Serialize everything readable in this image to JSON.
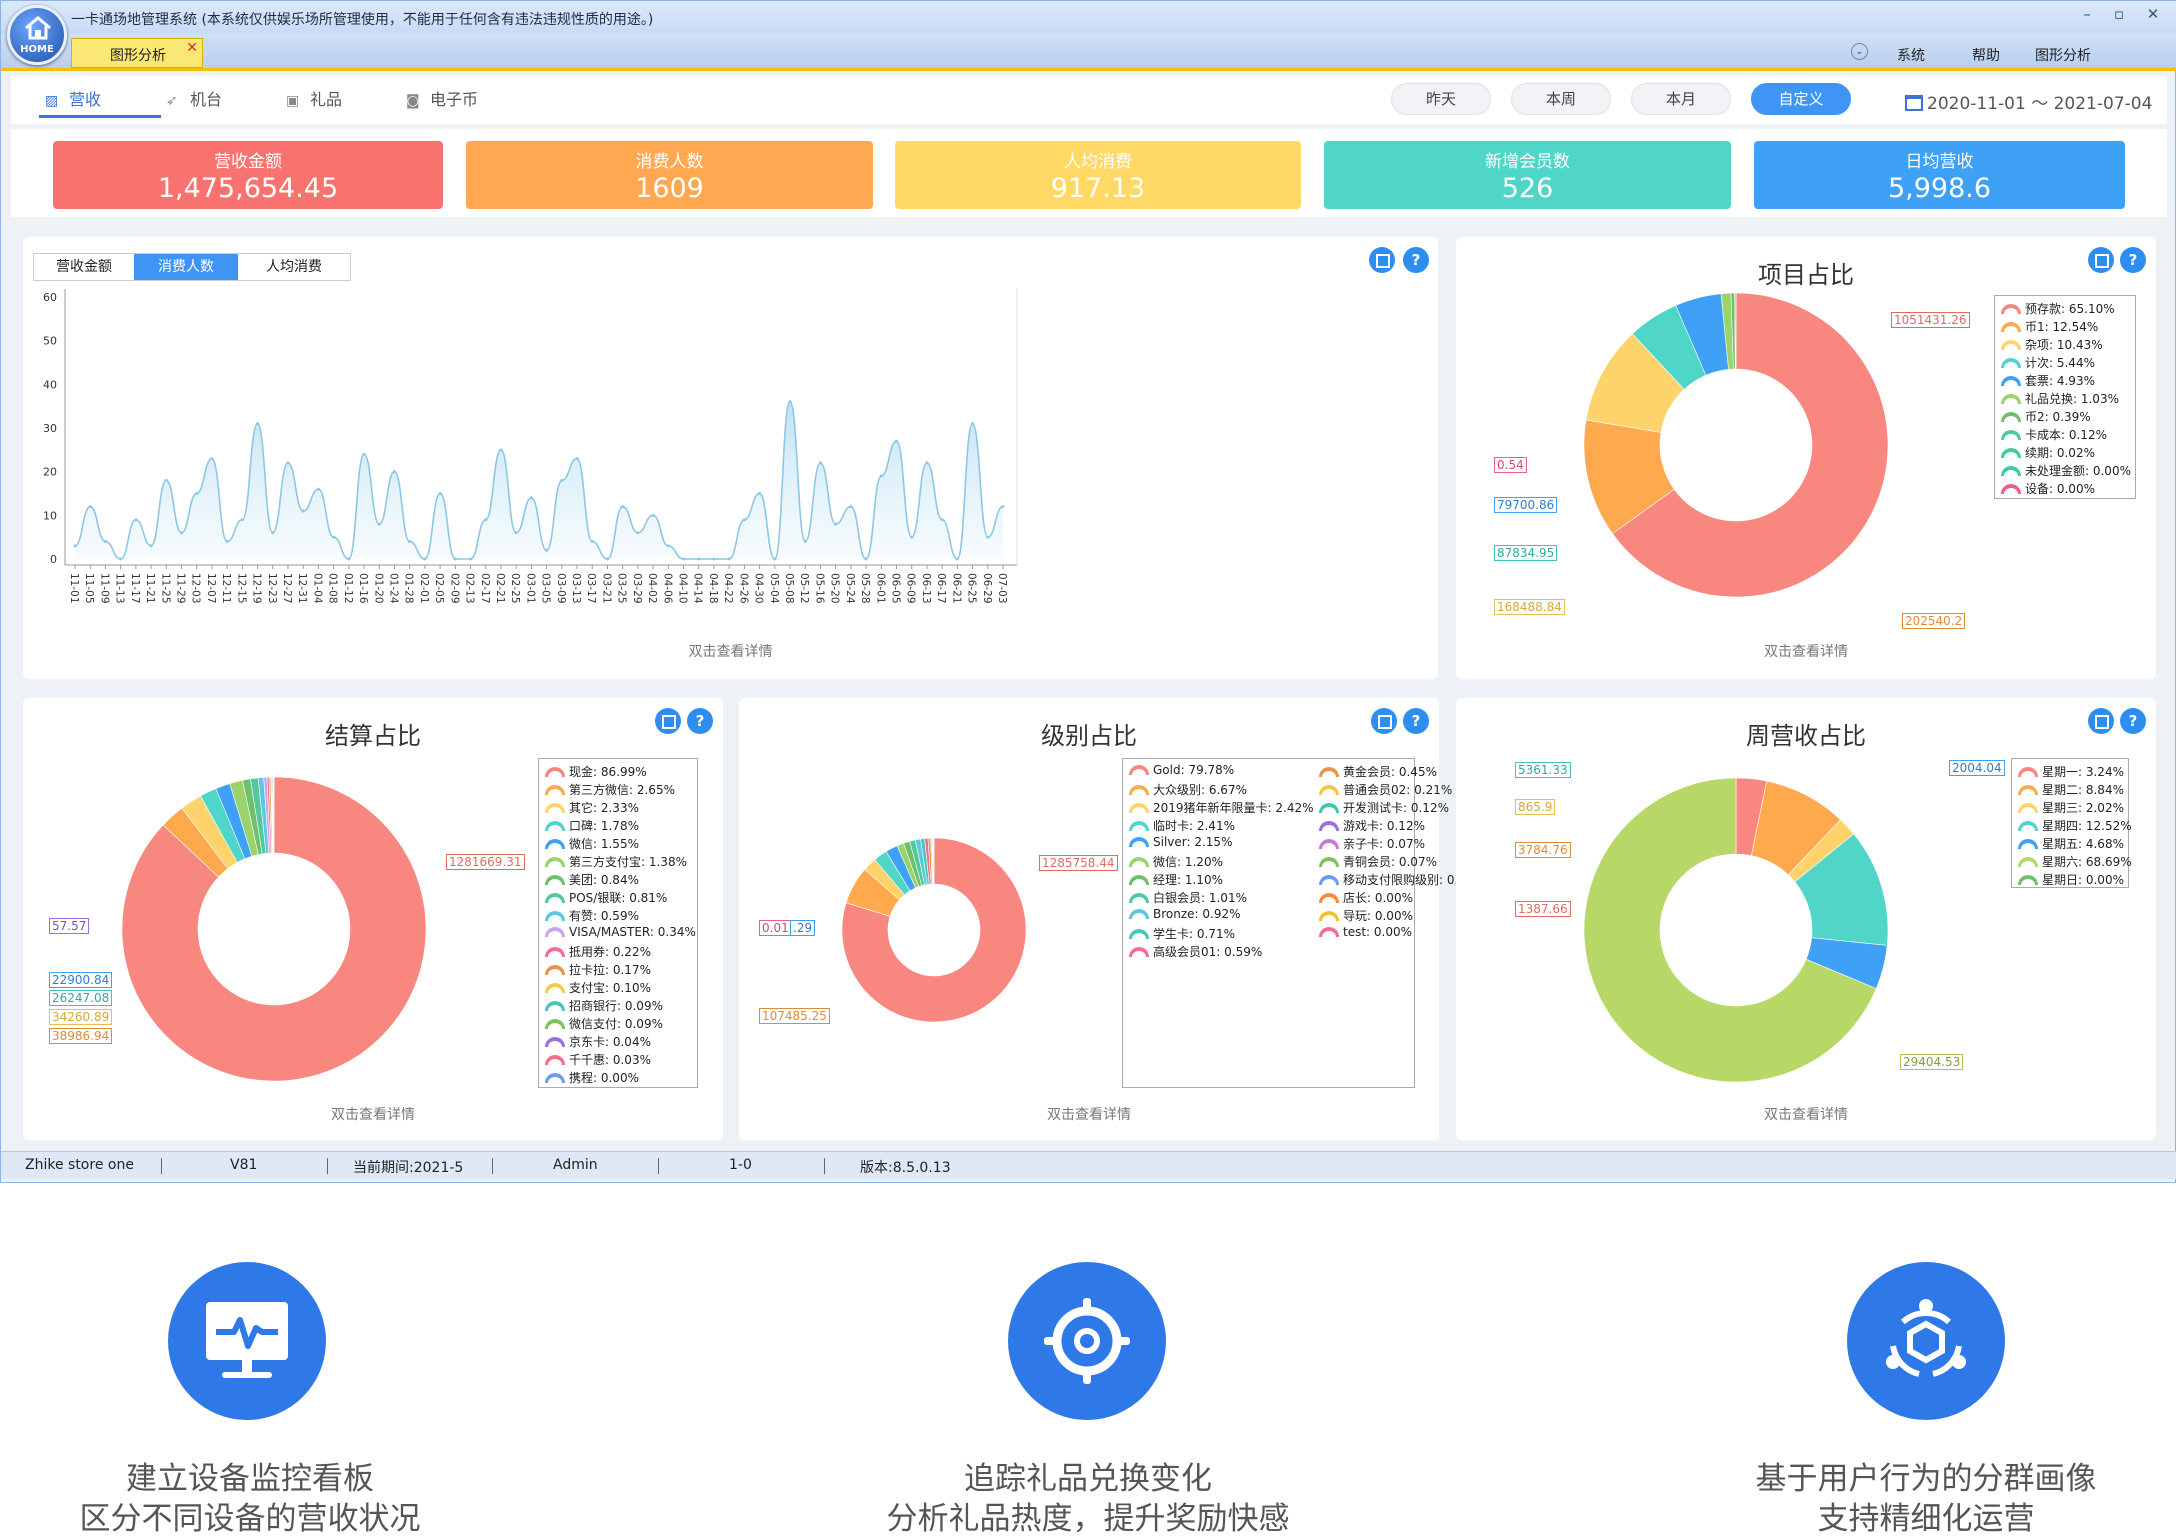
{
  "window": {
    "title": "一卡通场地管理系统 (本系统仅供娱乐场所管理使用，不能用于任何含有违法违规性质的用途。)",
    "logo_text": "HOME",
    "doc_tab": "图形分析",
    "controls": {
      "minimize": "–",
      "maximize": "▫",
      "close": "✕"
    },
    "menu": [
      "系统",
      "帮助",
      "图形分析"
    ]
  },
  "subnav": {
    "tabs": [
      {
        "label": "营收",
        "icon": "chart-icon"
      },
      {
        "label": "机台",
        "icon": "rocket-icon"
      },
      {
        "label": "礼品",
        "icon": "gift-icon"
      },
      {
        "label": "电子币",
        "icon": "coin-icon"
      }
    ],
    "ranges": [
      "昨天",
      "本周",
      "本月",
      "自定义"
    ],
    "date_from": "2020-11-01",
    "date_sep": "～",
    "date_to": "2021-07-04"
  },
  "kpis": [
    {
      "label": "营收金额",
      "value": "1,475,654.45",
      "color": "#f8736f"
    },
    {
      "label": "消费人数",
      "value": "1609",
      "color": "#ffa851"
    },
    {
      "label": "人均消费",
      "value": "917.13",
      "color": "#ffd865"
    },
    {
      "label": "新增会员数",
      "value": "526",
      "color": "#4fd6c9"
    },
    {
      "label": "日均营收",
      "value": "5,998.6",
      "color": "#3ea1f6"
    }
  ],
  "line_panel": {
    "tabs": [
      "营收金额",
      "消费人数",
      "人均消费"
    ],
    "active_tab": 1,
    "hint": "双击查看详情"
  },
  "pie_panels": {
    "items": {
      "title": "项目占比",
      "hint": "双击查看详情"
    },
    "settle": {
      "title": "结算占比",
      "hint": "双击查看详情"
    },
    "level": {
      "title": "级别占比",
      "hint": "双击查看详情"
    },
    "week": {
      "title": "周营收占比",
      "hint": "双击查看详情"
    }
  },
  "chart_data": [
    {
      "type": "area",
      "series": [
        {
          "name": "消费人数",
          "color": "#8cc7e6"
        }
      ],
      "ylim": [
        0,
        60
      ],
      "yticks": [
        "0",
        "10",
        "20",
        "30",
        "40",
        "50",
        "60"
      ],
      "x": [
        "11-01",
        "11-05",
        "11-09",
        "11-13",
        "11-17",
        "11-21",
        "11-25",
        "11-29",
        "12-03",
        "12-07",
        "12-11",
        "12-15",
        "12-19",
        "12-23",
        "12-27",
        "12-31",
        "01-04",
        "01-08",
        "01-12",
        "01-16",
        "01-20",
        "01-24",
        "01-28",
        "02-01",
        "02-05",
        "02-09",
        "02-13",
        "02-17",
        "02-21",
        "02-25",
        "03-01",
        "03-05",
        "03-09",
        "03-13",
        "03-17",
        "03-21",
        "03-25",
        "03-29",
        "04-02",
        "04-06",
        "04-10",
        "04-14",
        "04-18",
        "04-22",
        "04-26",
        "04-30",
        "05-04",
        "05-08",
        "05-12",
        "05-16",
        "05-20",
        "05-24",
        "05-28",
        "06-01",
        "06-05",
        "06-09",
        "06-13",
        "06-17",
        "06-21",
        "06-25",
        "06-29",
        "07-03"
      ],
      "values": [
        3,
        12,
        4,
        0,
        9,
        3,
        18,
        6,
        15,
        23,
        4,
        9,
        31,
        6,
        22,
        11,
        16,
        5,
        0,
        24,
        8,
        20,
        4,
        0,
        15,
        0,
        0,
        9,
        25,
        6,
        14,
        2,
        18,
        23,
        4,
        0,
        12,
        6,
        10,
        3,
        0,
        0,
        0,
        0,
        9,
        15,
        0,
        36,
        4,
        22,
        8,
        12,
        0,
        19,
        27,
        5,
        22,
        9,
        0,
        31,
        5,
        12
      ]
    },
    {
      "type": "pie",
      "title": "项目占比",
      "slices": [
        {
          "label": "预存款",
          "pct": 65.1,
          "color": "#f8877f"
        },
        {
          "label": "币1",
          "pct": 12.54,
          "color": "#ffa94e"
        },
        {
          "label": "杂项",
          "pct": 10.43,
          "color": "#ffd36b"
        },
        {
          "label": "计次",
          "pct": 5.44,
          "color": "#4fd6c9"
        },
        {
          "label": "套票",
          "pct": 4.93,
          "color": "#3ea1f6"
        },
        {
          "label": "礼品兑换",
          "pct": 1.03,
          "color": "#9bd36b"
        },
        {
          "label": "币2",
          "pct": 0.39,
          "color": "#6fc06c"
        },
        {
          "label": "卡成本",
          "pct": 0.12,
          "color": "#53c99a"
        },
        {
          "label": "续期",
          "pct": 0.02,
          "color": "#3fcf9a"
        },
        {
          "label": "未处理金额",
          "pct": 0.0,
          "color": "#3cc9ad"
        },
        {
          "label": "设备",
          "pct": 0.0,
          "color": "#ee5f86"
        }
      ],
      "values_shown": [
        "1051431.26",
        "202540.2",
        "168488.84",
        "87834.95",
        "79700.86",
        "0.54"
      ]
    },
    {
      "type": "pie",
      "title": "结算占比",
      "slices": [
        {
          "label": "现金",
          "pct": 86.99,
          "color": "#f8877f"
        },
        {
          "label": "第三方微信",
          "pct": 2.65,
          "color": "#ffa94e"
        },
        {
          "label": "其它",
          "pct": 2.33,
          "color": "#ffd36b"
        },
        {
          "label": "口碑",
          "pct": 1.78,
          "color": "#4fd6c9"
        },
        {
          "label": "微信",
          "pct": 1.55,
          "color": "#3ea1f6"
        },
        {
          "label": "第三方支付宝",
          "pct": 1.38,
          "color": "#9bd36b"
        },
        {
          "label": "美团",
          "pct": 0.84,
          "color": "#6fc06c"
        },
        {
          "label": "POS/银联",
          "pct": 0.81,
          "color": "#53c99a"
        },
        {
          "label": "有赞",
          "pct": 0.59,
          "color": "#5dc7e0"
        },
        {
          "label": "VISA/MASTER",
          "pct": 0.34,
          "color": "#c9a5f0"
        },
        {
          "label": "抵用券",
          "pct": 0.22,
          "color": "#f26d8f"
        },
        {
          "label": "拉卡拉",
          "pct": 0.17,
          "color": "#e6954b"
        },
        {
          "label": "支付宝",
          "pct": 0.1,
          "color": "#f4c64a"
        },
        {
          "label": "招商银行",
          "pct": 0.09,
          "color": "#47c7b8"
        },
        {
          "label": "微信支付",
          "pct": 0.09,
          "color": "#7cc35c"
        },
        {
          "label": "京东卡",
          "pct": 0.04,
          "color": "#9b6fe0"
        },
        {
          "label": "千千惠",
          "pct": 0.03,
          "color": "#ef6f8c"
        },
        {
          "label": "携程",
          "pct": 0.0,
          "color": "#6b9cf0"
        }
      ],
      "values_shown": [
        "1281669.31",
        "38986.94",
        "34260.89",
        "26247.08",
        "22900.84",
        "57.57"
      ]
    },
    {
      "type": "pie",
      "title": "级别占比",
      "slices": [
        {
          "label": "Gold",
          "pct": 79.78,
          "color": "#f8877f"
        },
        {
          "label": "大众级别",
          "pct": 6.67,
          "color": "#ffa94e"
        },
        {
          "label": "2019猪年新年限量卡",
          "pct": 2.42,
          "color": "#ffd36b"
        },
        {
          "label": "临时卡",
          "pct": 2.41,
          "color": "#4fd6c9"
        },
        {
          "label": "Silver",
          "pct": 2.15,
          "color": "#3ea1f6"
        },
        {
          "label": "微信",
          "pct": 1.2,
          "color": "#9bd36b"
        },
        {
          "label": "经理",
          "pct": 1.1,
          "color": "#6fc06c"
        },
        {
          "label": "白银会员",
          "pct": 1.01,
          "color": "#53c99a"
        },
        {
          "label": "Bronze",
          "pct": 0.92,
          "color": "#5dc7e0"
        },
        {
          "label": "学生卡",
          "pct": 0.71,
          "color": "#47c7b8"
        },
        {
          "label": "高级会员01",
          "pct": 0.59,
          "color": "#f26d8f"
        },
        {
          "label": "黄金会员",
          "pct": 0.45,
          "color": "#e6954b"
        },
        {
          "label": "普通会员02",
          "pct": 0.21,
          "color": "#f4c64a"
        },
        {
          "label": "开发测试卡",
          "pct": 0.12,
          "color": "#3fc9b0"
        },
        {
          "label": "游戏卡",
          "pct": 0.12,
          "color": "#9b6fe0"
        },
        {
          "label": "亲子卡",
          "pct": 0.07,
          "color": "#c777d9"
        },
        {
          "label": "青铜会员",
          "pct": 0.07,
          "color": "#7cc35c"
        },
        {
          "label": "移动支付限购级别",
          "pct": 0.0,
          "color": "#6b9cf0"
        },
        {
          "label": "店长",
          "pct": 0.0,
          "color": "#ff8a3d"
        },
        {
          "label": "导玩",
          "pct": 0.0,
          "color": "#f3c232"
        },
        {
          "label": "test",
          "pct": 0.0,
          "color": "#ef6f8c"
        }
      ],
      "values_shown": [
        "1285758.44",
        "107485.25",
        "0.01",
        ".29"
      ]
    },
    {
      "type": "pie",
      "title": "周营收占比",
      "slices": [
        {
          "label": "星期一",
          "pct": 3.24,
          "color": "#f8877f"
        },
        {
          "label": "星期二",
          "pct": 8.84,
          "color": "#ffa94e"
        },
        {
          "label": "星期三",
          "pct": 2.02,
          "color": "#ffd36b"
        },
        {
          "label": "星期四",
          "pct": 12.52,
          "color": "#4fd6c9"
        },
        {
          "label": "星期五",
          "pct": 4.68,
          "color": "#3ea1f6"
        },
        {
          "label": "星期六",
          "pct": 68.69,
          "color": "#b7d867"
        },
        {
          "label": "星期日",
          "pct": 0.0,
          "color": "#6fc06c"
        }
      ],
      "values_shown": [
        "5361.33",
        "865.9",
        "3784.76",
        "1387.66",
        "2004.04",
        "29404.53"
      ]
    }
  ],
  "status_bar": [
    "Zhike store one",
    "V81",
    "当前期间:2021-5",
    "Admin",
    "1-0",
    "版本:8.5.0.13"
  ],
  "features": [
    {
      "line1": "建立设备监控看板",
      "line2": "区分不同设备的营收状况",
      "icon": "monitor-pulse-icon"
    },
    {
      "line1": "追踪礼品兑换变化",
      "line2": "分析礼品热度，提升奖励快感",
      "icon": "target-icon"
    },
    {
      "line1": "基于用户行为的分群画像",
      "line2": "支持精细化运营",
      "icon": "cluster-icon"
    }
  ]
}
